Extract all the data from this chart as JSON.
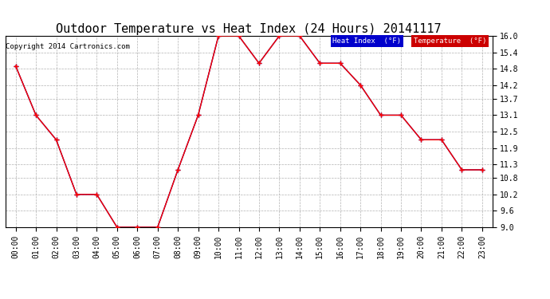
{
  "title": "Outdoor Temperature vs Heat Index (24 Hours) 20141117",
  "copyright": "Copyright 2014 Cartronics.com",
  "x_labels": [
    "00:00",
    "01:00",
    "02:00",
    "03:00",
    "04:00",
    "05:00",
    "06:00",
    "07:00",
    "08:00",
    "09:00",
    "10:00",
    "11:00",
    "12:00",
    "13:00",
    "14:00",
    "15:00",
    "16:00",
    "17:00",
    "18:00",
    "19:00",
    "20:00",
    "21:00",
    "22:00",
    "23:00"
  ],
  "temperature": [
    14.9,
    13.1,
    12.2,
    10.2,
    10.2,
    9.0,
    9.0,
    9.0,
    11.1,
    13.1,
    16.0,
    16.0,
    15.0,
    16.0,
    16.0,
    15.0,
    15.0,
    14.2,
    13.1,
    13.1,
    12.2,
    12.2,
    11.1,
    11.1
  ],
  "heat_index": [
    14.9,
    13.1,
    12.2,
    10.2,
    10.2,
    9.0,
    9.0,
    9.0,
    11.1,
    13.1,
    16.0,
    16.0,
    15.0,
    16.0,
    16.0,
    15.0,
    15.0,
    14.2,
    13.1,
    13.1,
    12.2,
    12.2,
    11.1,
    11.1
  ],
  "temp_color": "#ff0000",
  "heat_color": "#000099",
  "ylim_min": 9.0,
  "ylim_max": 16.0,
  "yticks": [
    9.0,
    9.6,
    10.2,
    10.8,
    11.3,
    11.9,
    12.5,
    13.1,
    13.7,
    14.2,
    14.8,
    15.4,
    16.0
  ],
  "background_color": "#ffffff",
  "grid_color": "#aaaaaa",
  "title_fontsize": 11,
  "tick_fontsize": 7,
  "copyright_fontsize": 6.5,
  "legend_heat_bg": "#0000cc",
  "legend_temp_bg": "#cc0000",
  "legend_text_heat": "Heat Index  (°F)",
  "legend_text_temp": "Temperature  (°F)"
}
